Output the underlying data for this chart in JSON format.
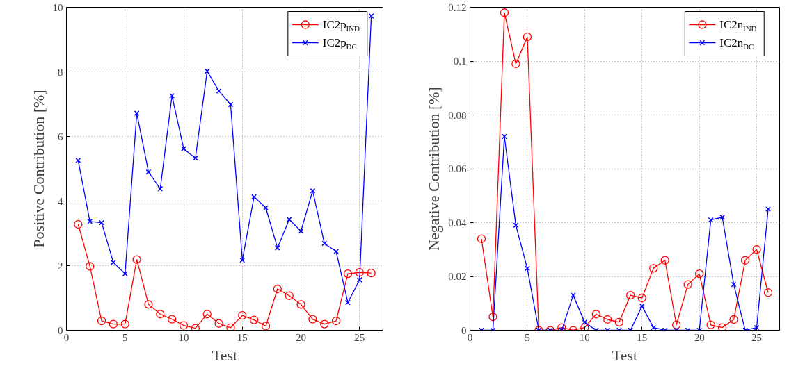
{
  "chart_data": [
    {
      "type": "line",
      "xlabel": "Test",
      "ylabel": "Positive Contribution [%]",
      "x": [
        1,
        2,
        3,
        4,
        5,
        6,
        7,
        8,
        9,
        10,
        11,
        12,
        13,
        14,
        15,
        16,
        17,
        18,
        19,
        20,
        21,
        22,
        23,
        24,
        25,
        26
      ],
      "xlim": [
        0,
        27
      ],
      "xticks": [
        0,
        5,
        10,
        15,
        20,
        25
      ],
      "ylim": [
        0,
        10
      ],
      "yticks": [
        0,
        2,
        4,
        6,
        8,
        10
      ],
      "grid": true,
      "legend": "top right",
      "line_style": "solid",
      "series": [
        {
          "name": "IC2p$_{IND}$",
          "color": "#ff0000",
          "marker": "circle",
          "values": [
            3.28,
            1.98,
            0.29,
            0.19,
            0.19,
            2.19,
            0.8,
            0.5,
            0.34,
            0.15,
            0.06,
            0.5,
            0.21,
            0.08,
            0.46,
            0.32,
            0.13,
            1.28,
            1.07,
            0.8,
            0.34,
            0.19,
            0.29,
            1.75,
            1.79,
            1.77
          ]
        },
        {
          "name": "IC2p$_{DC}$",
          "color": "#0000ff",
          "marker": "cross",
          "values": [
            5.26,
            3.37,
            3.33,
            2.1,
            1.75,
            6.72,
            4.9,
            4.38,
            7.26,
            5.62,
            5.33,
            8.02,
            7.41,
            6.99,
            2.17,
            4.13,
            3.79,
            2.55,
            3.43,
            3.07,
            4.32,
            2.69,
            2.44,
            0.86,
            1.56,
            9.73
          ]
        }
      ]
    },
    {
      "type": "line",
      "xlabel": "Test",
      "ylabel": "Negative Contribution [%]",
      "x": [
        1,
        2,
        3,
        4,
        5,
        6,
        7,
        8,
        9,
        10,
        11,
        12,
        13,
        14,
        15,
        16,
        17,
        18,
        19,
        20,
        21,
        22,
        23,
        24,
        25,
        26
      ],
      "xlim": [
        0,
        27
      ],
      "xticks": [
        0,
        5,
        10,
        15,
        20,
        25
      ],
      "ylim": [
        0,
        0.12
      ],
      "yticks": [
        0,
        0.02,
        0.04,
        0.06,
        0.08,
        0.1,
        0.12
      ],
      "grid": true,
      "legend": "top right",
      "line_style": "solid",
      "series": [
        {
          "name": "IC2n$_{IND}$",
          "color": "#ff0000",
          "marker": "circle",
          "values": [
            0.034,
            0.005,
            0.118,
            0.099,
            0.109,
            0,
            0,
            0.001,
            0,
            0.001,
            0.006,
            0.004,
            0.003,
            0.013,
            0.012,
            0.023,
            0.026,
            0.002,
            0.017,
            0.021,
            0.002,
            0.001,
            0.004,
            0.026,
            0.03,
            0.014
          ]
        },
        {
          "name": "IC2n$_{DC}$",
          "color": "#0000ff",
          "marker": "cross",
          "values": [
            0,
            0,
            0.072,
            0.039,
            0.023,
            0,
            0,
            0,
            0.013,
            0.003,
            0,
            0,
            0,
            0,
            0.009,
            0.001,
            0,
            0,
            0,
            0,
            0.041,
            0.042,
            0.017,
            0,
            0.001,
            0.045
          ]
        }
      ]
    }
  ]
}
